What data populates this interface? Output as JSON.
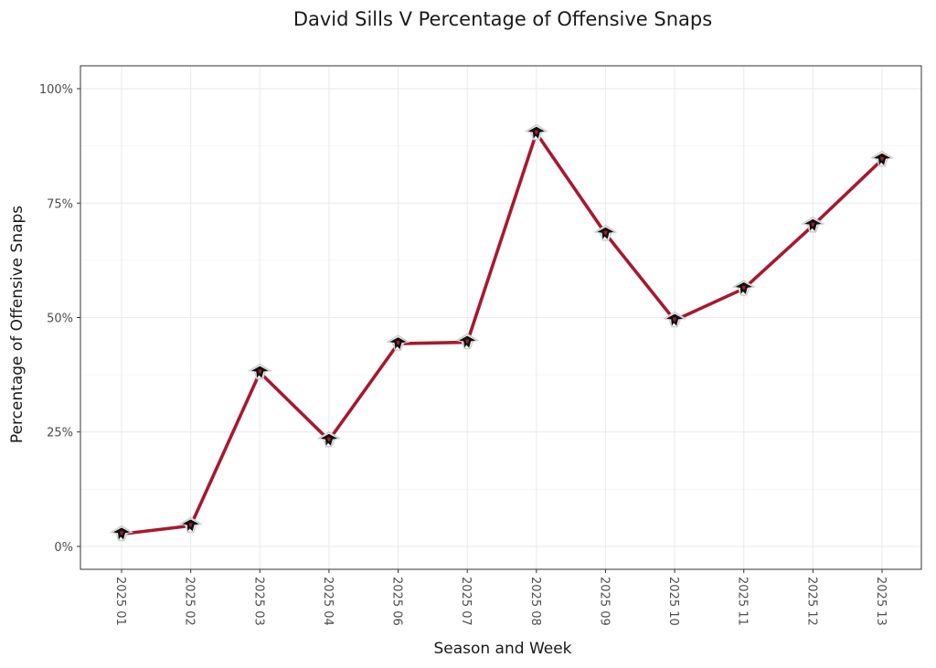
{
  "chart_data": {
    "type": "line",
    "title": "David Sills V Percentage of Offensive Snaps",
    "xlabel": "Season and Week",
    "ylabel": "Percentage of Offensive Snaps",
    "categories": [
      "2025 01",
      "2025 02",
      "2025 03",
      "2025 04",
      "2025 06",
      "2025 07",
      "2025 08",
      "2025 09",
      "2025 10",
      "2025 11",
      "2025 12",
      "2025 13"
    ],
    "series": [
      {
        "values": [
          0.027,
          0.045,
          0.38,
          0.232,
          0.443,
          0.446,
          0.903,
          0.683,
          0.494,
          0.563,
          0.701,
          0.845
        ],
        "color": "#a71930",
        "marker": "falcons-logo-icon"
      }
    ],
    "yticks": [
      0,
      0.25,
      0.5,
      0.75,
      1.0
    ],
    "ytick_labels": [
      "0%",
      "25%",
      "50%",
      "75%",
      "100%"
    ],
    "ylim": [
      -0.05,
      1.05
    ],
    "grid": true,
    "theme": "bw"
  }
}
